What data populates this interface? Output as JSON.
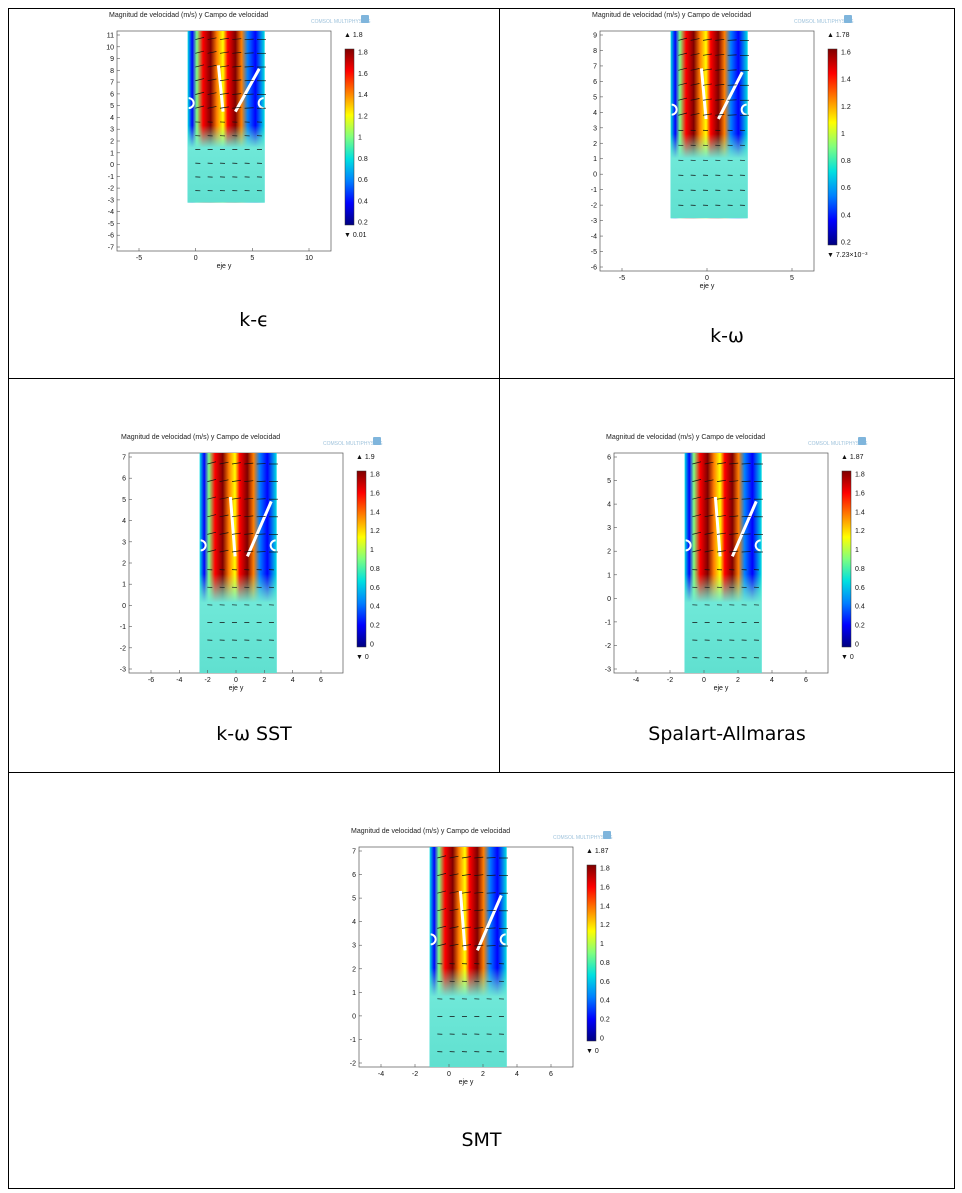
{
  "colors": {
    "jet_stops": [
      "#00007f",
      "#0000ff",
      "#0080ff",
      "#00e0e0",
      "#7fff7f",
      "#ffff00",
      "#ff8000",
      "#ff0000",
      "#7f0000"
    ],
    "border": "#000000",
    "logo": "#9fc3dc"
  },
  "panels": [
    {
      "id": "k-epsilon",
      "caption": "k-ϵ",
      "title": "Magnitud de velocidad (m/s) y Campo de velocidad",
      "logo_text": "COMSOL MULTIPHYSICS",
      "xlabel": "eje y",
      "x_ticks": [
        "-5",
        "0",
        "5",
        "10"
      ],
      "y_ticks": [
        "11",
        "10",
        "9",
        "8",
        "7",
        "6",
        "5",
        "4",
        "3",
        "2",
        "1",
        "0",
        "-1",
        "-2",
        "-3",
        "-4",
        "-5",
        "-6",
        "-7"
      ],
      "colorbar_max": "▲ 1.8",
      "colorbar_min": "▼ 0.01",
      "colorbar_ticks": [
        "1.8",
        "1.6",
        "1.4",
        "1.2",
        "1",
        "0.8",
        "0.6",
        "0.4",
        "0.2"
      ]
    },
    {
      "id": "k-omega",
      "caption": "k-ω",
      "title": "Magnitud de velocidad (m/s) y Campo de velocidad",
      "logo_text": "COMSOL MULTIPHYSICS",
      "xlabel": "eje y",
      "x_ticks": [
        "-5",
        "0",
        "5"
      ],
      "y_ticks": [
        "9",
        "8",
        "7",
        "6",
        "5",
        "4",
        "3",
        "2",
        "1",
        "0",
        "-1",
        "-2",
        "-3",
        "-4",
        "-5",
        "-6"
      ],
      "colorbar_max": "▲ 1.78",
      "colorbar_min": "▼ 7.23×10⁻³",
      "colorbar_ticks": [
        "1.6",
        "1.4",
        "1.2",
        "1",
        "0.8",
        "0.6",
        "0.4",
        "0.2"
      ]
    },
    {
      "id": "k-omega-sst",
      "caption": "k-ω SST",
      "title": "Magnitud de velocidad (m/s) y Campo de velocidad",
      "logo_text": "COMSOL MULTIPHYSICS",
      "xlabel": "eje y",
      "x_ticks": [
        "-6",
        "-4",
        "-2",
        "0",
        "2",
        "4",
        "6"
      ],
      "y_ticks": [
        "7",
        "6",
        "5",
        "4",
        "3",
        "2",
        "1",
        "0",
        "-1",
        "-2",
        "-3"
      ],
      "colorbar_max": "▲ 1.9",
      "colorbar_min": "▼ 0",
      "colorbar_ticks": [
        "1.8",
        "1.6",
        "1.4",
        "1.2",
        "1",
        "0.8",
        "0.6",
        "0.4",
        "0.2",
        "0"
      ]
    },
    {
      "id": "spalart-allmaras",
      "caption": "Spalart-Allmaras",
      "title": "Magnitud de velocidad (m/s) y Campo de velocidad",
      "logo_text": "COMSOL MULTIPHYSICS",
      "xlabel": "eje y",
      "x_ticks": [
        "-4",
        "-2",
        "0",
        "2",
        "4",
        "6"
      ],
      "y_ticks": [
        "6",
        "5",
        "4",
        "3",
        "2",
        "1",
        "0",
        "-1",
        "-2",
        "-3"
      ],
      "colorbar_max": "▲ 1.87",
      "colorbar_min": "▼ 0",
      "colorbar_ticks": [
        "1.8",
        "1.6",
        "1.4",
        "1.2",
        "1",
        "0.8",
        "0.6",
        "0.4",
        "0.2",
        "0"
      ]
    },
    {
      "id": "smt",
      "caption": "SMT",
      "title": "Magnitud de velocidad (m/s) y Campo de velocidad",
      "logo_text": "COMSOL MULTIPHYSICS",
      "xlabel": "eje y",
      "x_ticks": [
        "-4",
        "-2",
        "0",
        "2",
        "4",
        "6"
      ],
      "y_ticks": [
        "7",
        "6",
        "5",
        "4",
        "3",
        "2",
        "1",
        "0",
        "-1",
        "-2"
      ],
      "colorbar_max": "▲ 1.87",
      "colorbar_min": "▼ 0",
      "colorbar_ticks": [
        "1.8",
        "1.6",
        "1.4",
        "1.2",
        "1",
        "0.8",
        "0.6",
        "0.4",
        "0.2",
        "0"
      ]
    }
  ]
}
